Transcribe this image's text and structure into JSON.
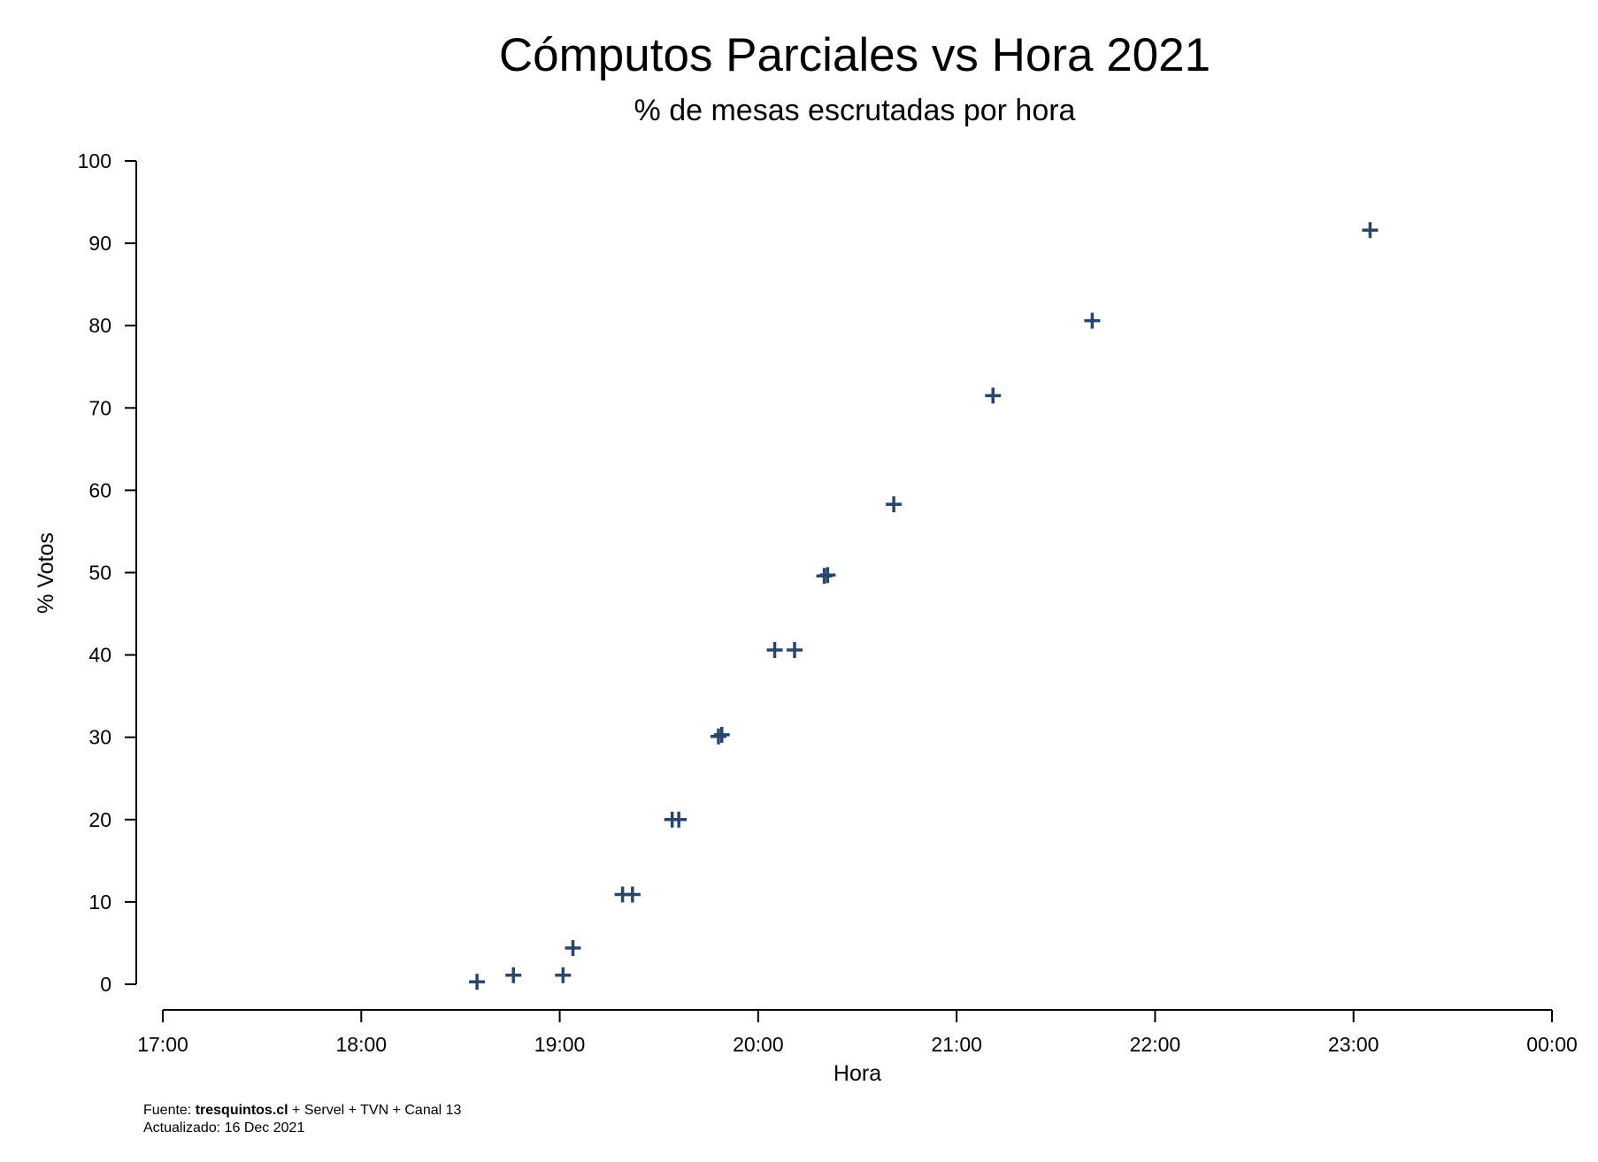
{
  "chart_data": {
    "type": "scatter",
    "title": "Cómputos Parciales vs Hora 2021",
    "subtitle": "% de mesas escrutadas por hora",
    "xlabel": "Hora",
    "ylabel": "% Votos",
    "x_ticks": [
      "17:00",
      "18:00",
      "19:00",
      "20:00",
      "21:00",
      "22:00",
      "23:00",
      "00:00"
    ],
    "y_ticks": [
      0,
      10,
      20,
      30,
      40,
      50,
      60,
      70,
      80,
      90,
      100
    ],
    "xlim": [
      "17:00",
      "00:00"
    ],
    "ylim": [
      0,
      100
    ],
    "marker": "plus",
    "marker_color": "#27466d",
    "grid": false,
    "points": [
      {
        "x": "18:35",
        "y": 0.3
      },
      {
        "x": "18:46",
        "y": 1.1
      },
      {
        "x": "19:01",
        "y": 1.1
      },
      {
        "x": "19:04",
        "y": 4.4
      },
      {
        "x": "19:19",
        "y": 10.9
      },
      {
        "x": "19:22",
        "y": 10.9
      },
      {
        "x": "19:34",
        "y": 20.0
      },
      {
        "x": "19:36",
        "y": 20.0
      },
      {
        "x": "19:48",
        "y": 30.1
      },
      {
        "x": "19:49",
        "y": 30.3
      },
      {
        "x": "20:05",
        "y": 40.6
      },
      {
        "x": "20:11",
        "y": 40.6
      },
      {
        "x": "20:20",
        "y": 49.6
      },
      {
        "x": "20:21",
        "y": 49.7
      },
      {
        "x": "20:41",
        "y": 58.3
      },
      {
        "x": "21:11",
        "y": 71.5
      },
      {
        "x": "21:41",
        "y": 80.6
      },
      {
        "x": "23:05",
        "y": 91.6
      }
    ]
  },
  "footer": {
    "source_prefix": "Fuente: ",
    "source_bold": "tresquintos.cl",
    "source_rest": " + Servel + TVN + Canal 13",
    "updated": "Actualizado: 16 Dec 2021"
  }
}
